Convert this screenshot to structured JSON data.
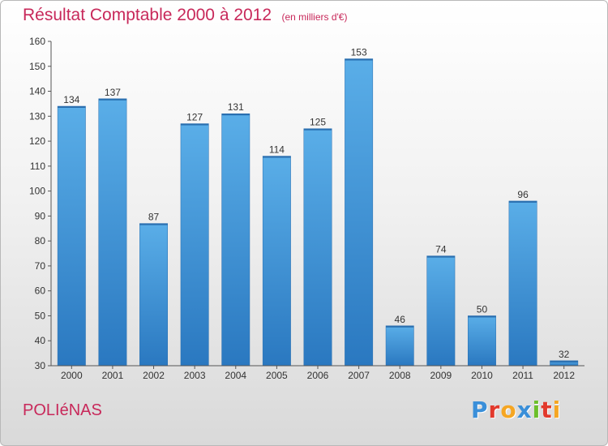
{
  "page": {
    "title": "Résultat Comptable 2000 à 2012",
    "subtitle": "(en milliers d'€)",
    "commune": "POLIéNAS",
    "brand": {
      "text": "Proxiti",
      "letters": [
        {
          "char": "P",
          "color": "#3a8fd9"
        },
        {
          "char": "r",
          "color": "#e2392c"
        },
        {
          "char": "o",
          "color": "#f5a623"
        },
        {
          "char": "x",
          "color": "#3a8fd9"
        },
        {
          "char": "i",
          "color": "#6cbf2a"
        },
        {
          "char": "t",
          "color": "#e2392c"
        },
        {
          "char": "i",
          "color": "#f5a623"
        }
      ]
    }
  },
  "chart_data": {
    "type": "bar",
    "categories": [
      "2000",
      "2001",
      "2002",
      "2003",
      "2004",
      "2005",
      "2006",
      "2007",
      "2008",
      "2009",
      "2010",
      "2011",
      "2012"
    ],
    "values": [
      134,
      137,
      87,
      127,
      131,
      114,
      125,
      153,
      46,
      74,
      50,
      96,
      32
    ],
    "ylim": [
      30,
      160
    ],
    "yticks": [
      30,
      40,
      50,
      60,
      70,
      80,
      90,
      100,
      110,
      120,
      130,
      140,
      150,
      160
    ],
    "grid": false,
    "bar_color": "#4a9ee0",
    "bar_color_dark": "#2a78c0"
  }
}
